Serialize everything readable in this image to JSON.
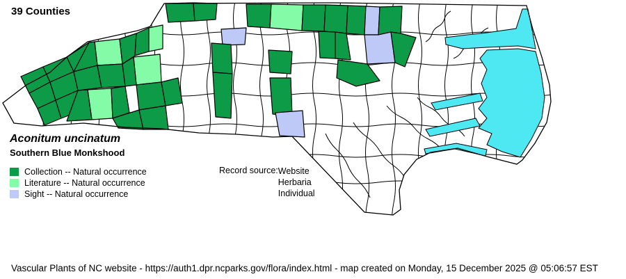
{
  "title": "39 Counties",
  "species": {
    "scientific_name": "Aconitum uncinatum",
    "common_name": "Southern Blue Monkshood"
  },
  "legend": {
    "items": [
      {
        "key": "collection",
        "label": "Collection -- Natural occurrence",
        "color": "#0D9B47"
      },
      {
        "key": "literature",
        "label": "Literature -- Natural occurrence",
        "color": "#84FBA6"
      },
      {
        "key": "sight",
        "label": "Sight -- Natural occurrence",
        "color": "#BEC9F8"
      }
    ]
  },
  "record_source": {
    "label": "Record source:",
    "values": [
      "Website",
      "Herbaria",
      "Individual"
    ]
  },
  "map": {
    "region": "North Carolina county map",
    "water_color": "#4DE8F2",
    "outline_color": "#000000",
    "land_color": "#FFFFFF"
  },
  "footer": "Vascular Plants of NC website - https://auth1.dpr.ncparks.gov/flora/index.html - map created on Monday, 15 December 2025 @ 05:06:57 EST"
}
